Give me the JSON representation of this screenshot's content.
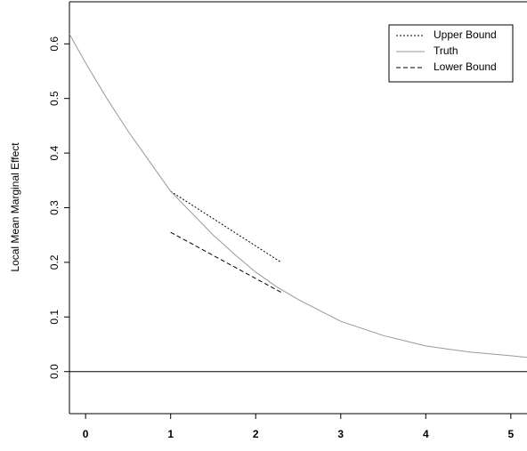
{
  "chart_data": {
    "type": "line",
    "y_label": "Local Mean Marginal Effect",
    "xlim": [
      -0.19,
      5.19
    ],
    "ylim": [
      -0.077,
      0.677
    ],
    "xticks": [
      0,
      1,
      2,
      3,
      4,
      5
    ],
    "yticks": [
      {
        "value": 0,
        "label": "0.0"
      },
      0.1,
      0.2,
      0.3,
      0.4,
      0.5,
      0.6
    ],
    "reference_line": 0,
    "legend": "top-right",
    "series": [
      {
        "name": "Upper Bound",
        "color": "#000000",
        "dash": "dotted",
        "x": [
          1.0,
          2.3
        ],
        "values": [
          0.33,
          0.2
        ]
      },
      {
        "name": "Truth",
        "color": "#999999",
        "dash": "solid",
        "x": [
          -0.19,
          0,
          0.25,
          0.5,
          0.75,
          1,
          1.25,
          1.5,
          1.75,
          2,
          2.25,
          2.5,
          3,
          3.5,
          4,
          4.5,
          5,
          5.19
        ],
        "values": [
          0.618,
          0.565,
          0.5,
          0.44,
          0.385,
          0.33,
          0.29,
          0.25,
          0.215,
          0.182,
          0.155,
          0.132,
          0.092,
          0.066,
          0.047,
          0.036,
          0.029,
          0.026
        ]
      },
      {
        "name": "Lower Bound",
        "color": "#000000",
        "dash": "dashed",
        "x": [
          1.0,
          2.3
        ],
        "values": [
          0.255,
          0.145
        ]
      }
    ]
  }
}
